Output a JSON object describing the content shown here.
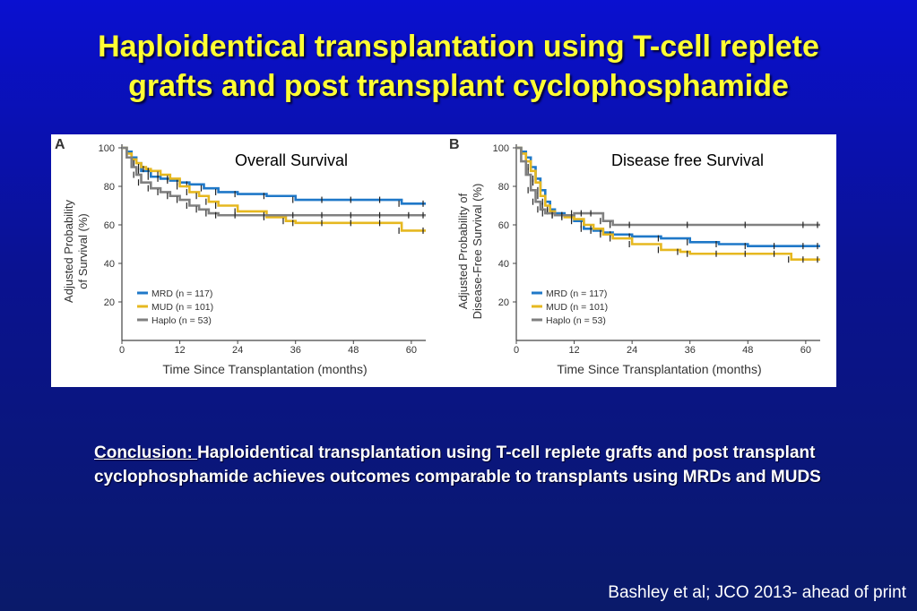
{
  "title": {
    "line1": "Haploidentical transplantation using T-cell replete",
    "line2": "grafts and post transplant cyclophosphamide"
  },
  "chart_data": [
    {
      "type": "line",
      "panel": "A",
      "title": "Overall Survival",
      "xlabel": "Time Since Transplantation (months)",
      "ylabel_line1": "Adjusted Probability",
      "ylabel_line2": "of Survival (%)",
      "xticks": [
        "0",
        "12",
        "24",
        "36",
        "48",
        "60"
      ],
      "yticks": [
        "100",
        "80",
        "60",
        "40",
        "20"
      ],
      "xlim": [
        0,
        63
      ],
      "ylim": [
        0,
        100
      ],
      "series": [
        {
          "name": "MRD (n = 117)",
          "color": "#1f78c8",
          "x": [
            0,
            1,
            2,
            3,
            4,
            6,
            8,
            10,
            12,
            14,
            17,
            20,
            24,
            30,
            36,
            42,
            48,
            54,
            58,
            63
          ],
          "y": [
            100,
            98,
            95,
            92,
            88,
            85,
            84,
            83,
            82,
            81,
            79,
            77,
            76,
            75,
            73,
            73,
            73,
            73,
            71,
            71
          ]
        },
        {
          "name": "MUD (n = 101)",
          "color": "#e6b820",
          "x": [
            0,
            1,
            2,
            3,
            4,
            5,
            6,
            8,
            10,
            12,
            14,
            16,
            18,
            20,
            24,
            30,
            34,
            36,
            42,
            48,
            54,
            58,
            63
          ],
          "y": [
            100,
            97,
            94,
            92,
            90,
            89,
            88,
            86,
            84,
            80,
            77,
            75,
            72,
            70,
            67,
            64,
            62,
            61,
            61,
            61,
            61,
            57,
            57
          ]
        },
        {
          "name": "Haplo (n = 53)",
          "color": "#808080",
          "x": [
            0,
            1,
            2,
            3,
            4,
            6,
            8,
            10,
            12,
            14,
            16,
            18,
            20,
            24,
            30,
            36,
            42,
            48,
            54,
            60,
            63
          ],
          "y": [
            100,
            95,
            90,
            86,
            82,
            79,
            77,
            75,
            73,
            70,
            68,
            66,
            65,
            65,
            65,
            65,
            65,
            65,
            65,
            65,
            65
          ]
        }
      ]
    },
    {
      "type": "line",
      "panel": "B",
      "title": "Disease free Survival",
      "xlabel": "Time Since Transplantation (months)",
      "ylabel_line1": "Adjusted Probability of",
      "ylabel_line2": "Disease-Free Survival (%)",
      "xticks": [
        "0",
        "12",
        "24",
        "36",
        "48",
        "60"
      ],
      "yticks": [
        "100",
        "80",
        "60",
        "40",
        "20"
      ],
      "xlim": [
        0,
        63
      ],
      "ylim": [
        0,
        100
      ],
      "series": [
        {
          "name": "MRD (n = 117)",
          "color": "#1f78c8",
          "x": [
            0,
            1,
            2,
            3,
            4,
            5,
            6,
            7,
            8,
            10,
            12,
            14,
            16,
            18,
            20,
            24,
            30,
            36,
            42,
            48,
            54,
            60,
            63
          ],
          "y": [
            100,
            98,
            95,
            90,
            84,
            78,
            72,
            68,
            66,
            65,
            62,
            58,
            57,
            56,
            55,
            54,
            53,
            51,
            50,
            49,
            49,
            49,
            49
          ]
        },
        {
          "name": "MUD (n = 101)",
          "color": "#e6b820",
          "x": [
            0,
            1,
            2,
            3,
            4,
            5,
            6,
            7,
            8,
            10,
            12,
            14,
            16,
            18,
            20,
            24,
            30,
            34,
            36,
            42,
            48,
            54,
            57,
            60,
            63
          ],
          "y": [
            100,
            97,
            93,
            88,
            82,
            75,
            70,
            67,
            65,
            64,
            63,
            60,
            58,
            55,
            53,
            50,
            47,
            46,
            45,
            45,
            45,
            45,
            42,
            42,
            42
          ]
        },
        {
          "name": "Haplo (n = 53)",
          "color": "#808080",
          "x": [
            0,
            1,
            2,
            3,
            4,
            5,
            6,
            8,
            10,
            12,
            14,
            16,
            18,
            20,
            24,
            36,
            48,
            60,
            63
          ],
          "y": [
            100,
            93,
            86,
            78,
            72,
            68,
            66,
            65,
            65,
            66,
            66,
            66,
            62,
            60,
            60,
            60,
            60,
            60,
            60
          ]
        }
      ]
    }
  ],
  "conclusion": {
    "lead": "Conclusion: ",
    "text": "Haploidentical transplantation using T-cell replete grafts and post transplant cyclophosphamide achieves outcomes comparable to transplants using MRDs and MUDS"
  },
  "citation": "Bashley et al; JCO 2013- ahead of print"
}
